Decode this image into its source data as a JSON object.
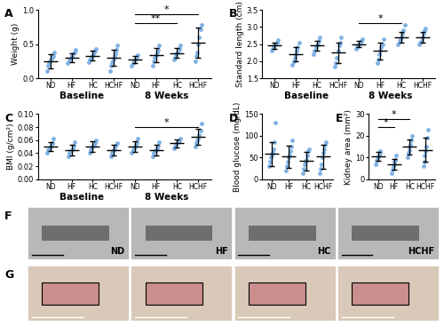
{
  "chart_data": [
    {
      "panel": "A",
      "type": "dot_errorbar",
      "ylabel": "Weight (g)",
      "categories": [
        "ND",
        "HF",
        "HC",
        "HCHF",
        "ND",
        "HF",
        "HC",
        "HCHF"
      ],
      "groups": [
        {
          "label": "Baseline",
          "start": 0,
          "end": 3
        },
        {
          "label": "8 Weeks",
          "start": 4,
          "end": 7
        }
      ],
      "points": [
        [
          0.1,
          0.18,
          0.22,
          0.25,
          0.28,
          0.3,
          0.33,
          0.38
        ],
        [
          0.22,
          0.26,
          0.28,
          0.3,
          0.32,
          0.35,
          0.38,
          0.42
        ],
        [
          0.24,
          0.28,
          0.3,
          0.33,
          0.35,
          0.38,
          0.4,
          0.43
        ],
        [
          0.1,
          0.18,
          0.24,
          0.28,
          0.32,
          0.36,
          0.42,
          0.48
        ],
        [
          0.18,
          0.22,
          0.25,
          0.27,
          0.29,
          0.31,
          0.34
        ],
        [
          0.18,
          0.25,
          0.3,
          0.34,
          0.38,
          0.42,
          0.48
        ],
        [
          0.27,
          0.3,
          0.34,
          0.37,
          0.4,
          0.43,
          0.48
        ],
        [
          0.25,
          0.32,
          0.38,
          0.5,
          0.6,
          0.72,
          0.78
        ]
      ],
      "means": [
        0.25,
        0.3,
        0.33,
        0.3,
        0.27,
        0.34,
        0.37,
        0.52
      ],
      "sd": [
        0.1,
        0.07,
        0.07,
        0.12,
        0.05,
        0.1,
        0.07,
        0.22
      ],
      "significance": [
        {
          "from": 4,
          "to": 6,
          "label": "**"
        },
        {
          "from": 4,
          "to": 7,
          "label": "*"
        }
      ],
      "ylim": [
        0,
        1.0
      ],
      "yticks": [
        {
          "value": 0,
          "label": "0.0"
        },
        0.5,
        {
          "value": 1.0,
          "label": "1.0"
        }
      ],
      "color": "#7fb2e5"
    },
    {
      "panel": "B",
      "type": "dot_errorbar",
      "ylabel": "Standard length (cm)",
      "categories": [
        "ND",
        "HF",
        "HC",
        "HCHF",
        "ND",
        "HF",
        "HC",
        "HCHF"
      ],
      "groups": [
        {
          "label": "Baseline",
          "start": 0,
          "end": 3
        },
        {
          "label": "8 Weeks",
          "start": 4,
          "end": 7
        }
      ],
      "points": [
        [
          2.3,
          2.35,
          2.4,
          2.45,
          2.5,
          2.55,
          2.62
        ],
        [
          1.9,
          2.0,
          2.1,
          2.2,
          2.3,
          2.4,
          2.55
        ],
        [
          2.2,
          2.3,
          2.4,
          2.45,
          2.5,
          2.6,
          2.7
        ],
        [
          1.85,
          1.95,
          2.1,
          2.3,
          2.45,
          2.55,
          2.7
        ],
        [
          2.35,
          2.4,
          2.45,
          2.5,
          2.55,
          2.6,
          2.65
        ],
        [
          1.95,
          2.05,
          2.2,
          2.3,
          2.4,
          2.5,
          2.65
        ],
        [
          2.5,
          2.6,
          2.65,
          2.7,
          2.8,
          2.9,
          3.05
        ],
        [
          2.5,
          2.55,
          2.6,
          2.7,
          2.8,
          2.9,
          2.95
        ]
      ],
      "means": [
        2.45,
        2.2,
        2.45,
        2.25,
        2.5,
        2.3,
        2.7,
        2.7
      ],
      "sd": [
        0.1,
        0.2,
        0.15,
        0.3,
        0.1,
        0.25,
        0.15,
        0.15
      ],
      "significance": [
        {
          "from": 4,
          "to": 6,
          "label": "*"
        }
      ],
      "ylim": [
        1.5,
        3.5
      ],
      "yticks": [
        1.5,
        {
          "value": 2.0,
          "label": "2.0"
        },
        2.5,
        {
          "value": 3.0,
          "label": "3.0"
        },
        3.5
      ],
      "color": "#7fb2e5"
    },
    {
      "panel": "C",
      "type": "dot_errorbar",
      "ylabel": "BMI (g/cm²)",
      "categories": [
        "ND",
        "HF",
        "HC",
        "HCHF",
        "ND",
        "HF",
        "HC",
        "HCHF"
      ],
      "groups": [
        {
          "label": "Baseline",
          "start": 0,
          "end": 3
        },
        {
          "label": "8 Weeks",
          "start": 4,
          "end": 7
        }
      ],
      "points": [
        [
          0.04,
          0.045,
          0.048,
          0.05,
          0.053,
          0.056,
          0.062
        ],
        [
          0.035,
          0.04,
          0.043,
          0.045,
          0.048,
          0.052,
          0.057
        ],
        [
          0.04,
          0.045,
          0.048,
          0.05,
          0.053,
          0.056,
          0.06
        ],
        [
          0.035,
          0.04,
          0.043,
          0.045,
          0.048,
          0.052,
          0.056
        ],
        [
          0.04,
          0.045,
          0.048,
          0.05,
          0.053,
          0.056,
          0.062
        ],
        [
          0.035,
          0.04,
          0.043,
          0.045,
          0.048,
          0.052,
          0.057
        ],
        [
          0.047,
          0.05,
          0.053,
          0.055,
          0.057,
          0.06,
          0.063
        ],
        [
          0.05,
          0.055,
          0.06,
          0.063,
          0.068,
          0.075,
          0.085
        ]
      ],
      "means": [
        0.05,
        0.045,
        0.05,
        0.045,
        0.05,
        0.045,
        0.055,
        0.065
      ],
      "sd": [
        0.007,
        0.008,
        0.008,
        0.008,
        0.008,
        0.008,
        0.006,
        0.012
      ],
      "significance": [
        {
          "from": 4,
          "to": 7,
          "label": "*"
        }
      ],
      "ylim": [
        0,
        0.1
      ],
      "yticks": [
        {
          "value": 0,
          "label": "0.00"
        },
        0.02,
        0.04,
        0.06,
        0.08,
        {
          "value": 0.1,
          "label": "0.10"
        }
      ],
      "color": "#7fb2e5"
    },
    {
      "panel": "D",
      "type": "dot_errorbar",
      "ylabel": "Blood glucose (mg/dL)",
      "categories": [
        "ND",
        "HF",
        "HC",
        "HCHF"
      ],
      "points": [
        [
          30,
          40,
          50,
          55,
          60,
          70,
          85,
          130
        ],
        [
          20,
          30,
          40,
          50,
          55,
          65,
          75,
          90
        ],
        [
          15,
          25,
          35,
          40,
          45,
          55,
          65,
          70
        ],
        [
          15,
          25,
          35,
          50,
          60,
          70,
          80,
          85
        ]
      ],
      "means": [
        58,
        52,
        42,
        52
      ],
      "sd": [
        27,
        25,
        22,
        28
      ],
      "significance": [],
      "ylim": [
        0,
        150
      ],
      "yticks": [
        0,
        50,
        100,
        150
      ],
      "color": "#7fb2e5"
    },
    {
      "panel": "E",
      "type": "dot_errorbar",
      "ylabel": "Kidney area (mm²)",
      "categories": [
        "ND",
        "HF",
        "HC",
        "HCHF"
      ],
      "points": [
        [
          7,
          8.5,
          9.5,
          10.5,
          11,
          12,
          13
        ],
        [
          3,
          4.5,
          6,
          7,
          8,
          9,
          11
        ],
        [
          10,
          12,
          13.5,
          15,
          16,
          18,
          20
        ],
        [
          6,
          8,
          11,
          13,
          15,
          19,
          23
        ]
      ],
      "means": [
        10.5,
        7,
        15,
        13.5
      ],
      "sd": [
        2,
        2.5,
        3.5,
        5.5
      ],
      "significance": [
        {
          "from": 0,
          "to": 1,
          "label": "*"
        },
        {
          "from": 0,
          "to": 2,
          "label": "*"
        }
      ],
      "ylim": [
        0,
        30
      ],
      "yticks": [
        0,
        10,
        20,
        30
      ],
      "color": "#7fb2e5"
    }
  ],
  "photos": [
    {
      "panel": "F",
      "labels": [
        "ND",
        "HF",
        "HC",
        "HCHF"
      ]
    },
    {
      "panel": "G"
    }
  ]
}
